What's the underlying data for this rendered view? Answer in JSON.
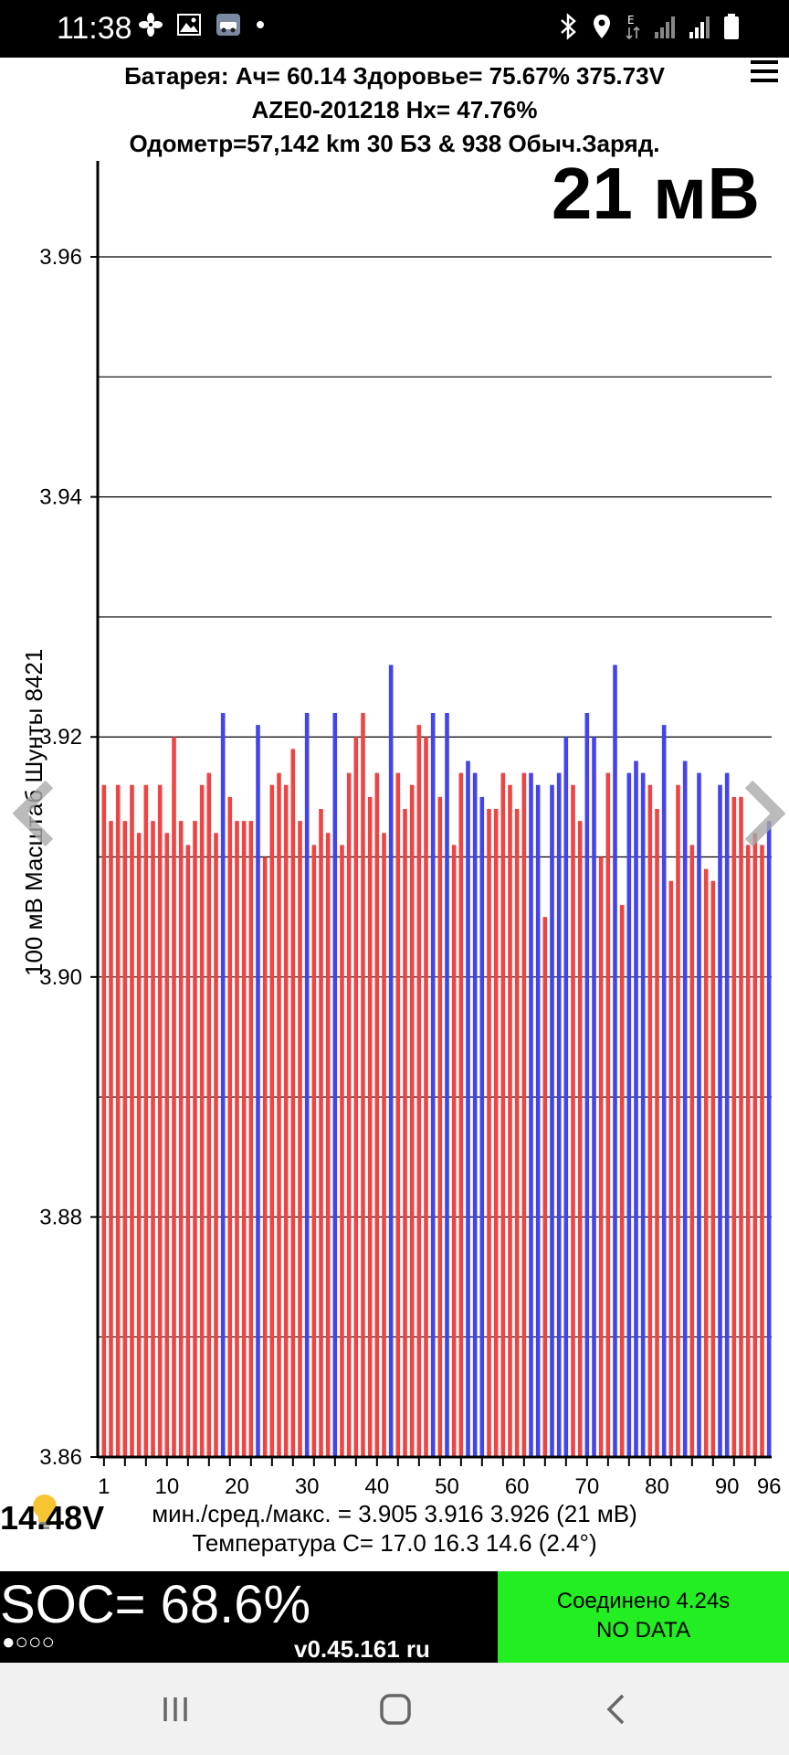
{
  "status_bar": {
    "time": "11:38",
    "icons_left": [
      "fan-icon",
      "image-icon",
      "car-app-icon",
      "dot-icon"
    ],
    "icons_right": [
      "bluetooth-icon",
      "location-icon",
      "data-e-icon",
      "signal-icon",
      "signal-icon",
      "battery-icon"
    ]
  },
  "header": {
    "line1": "Батарея:  Ач= 60.14  Здоровье= 75.67%   375.73V",
    "line2": "AZE0-201218   Hx= 47.76%",
    "line3": "Одометр=57,142 km 30 БЗ & 938 Обыч.Заряд."
  },
  "big_value": "21 мВ",
  "y_axis_label": "100 мВ Масштаб   Шунты 8421",
  "chart_data": {
    "type": "bar",
    "ylim": [
      3.86,
      3.968
    ],
    "y_ticks": [
      "3.96",
      "3.94",
      "3.92",
      "3.90",
      "3.88",
      "3.86"
    ],
    "x_ticks": [
      "1",
      "10",
      "20",
      "30",
      "40",
      "50",
      "60",
      "70",
      "80",
      "90",
      "96"
    ],
    "grid": true,
    "colors": {
      "normal": "#ee4444",
      "shunt": "#4444ee"
    },
    "values": [
      3.916,
      3.913,
      3.916,
      3.913,
      3.916,
      3.912,
      3.916,
      3.913,
      3.916,
      3.912,
      3.92,
      3.913,
      3.911,
      3.913,
      3.916,
      3.917,
      3.912,
      3.922,
      3.915,
      3.913,
      3.913,
      3.913,
      3.921,
      3.91,
      3.916,
      3.917,
      3.916,
      3.919,
      3.913,
      3.922,
      3.911,
      3.914,
      3.912,
      3.922,
      3.911,
      3.917,
      3.92,
      3.922,
      3.915,
      3.917,
      3.912,
      3.926,
      3.917,
      3.914,
      3.916,
      3.921,
      3.92,
      3.922,
      3.915,
      3.922,
      3.911,
      3.917,
      3.918,
      3.917,
      3.915,
      3.914,
      3.914,
      3.917,
      3.916,
      3.914,
      3.917,
      3.917,
      3.916,
      3.905,
      3.916,
      3.917,
      3.92,
      3.916,
      3.913,
      3.922,
      3.92,
      3.91,
      3.917,
      3.926,
      3.906,
      3.917,
      3.918,
      3.917,
      3.916,
      3.914,
      3.921,
      3.908,
      3.916,
      3.918,
      3.911,
      3.917,
      3.909,
      3.908,
      3.916,
      3.917,
      3.915,
      3.915,
      3.911,
      3.912,
      3.911,
      3.913
    ],
    "shunts": [
      18,
      23,
      30,
      34,
      42,
      48,
      50,
      53,
      54,
      55,
      62,
      63,
      65,
      66,
      67,
      70,
      71,
      74,
      76,
      77,
      78,
      81,
      84,
      86,
      89,
      90,
      96
    ]
  },
  "stats": {
    "line1": "мин./сред./макс. = 3.905 3.916 3.926  (21 мВ)",
    "line2": "Температура C= 17.0  16.3  14.6  (2.4°)"
  },
  "battery_12v": "14.48V",
  "soc": {
    "label": "SOC= 68.6%",
    "indicator": "●○○○",
    "version": "v0.45.161 ru"
  },
  "connection": {
    "line1": "Соединено 4.24s",
    "line2": "NO DATA"
  }
}
